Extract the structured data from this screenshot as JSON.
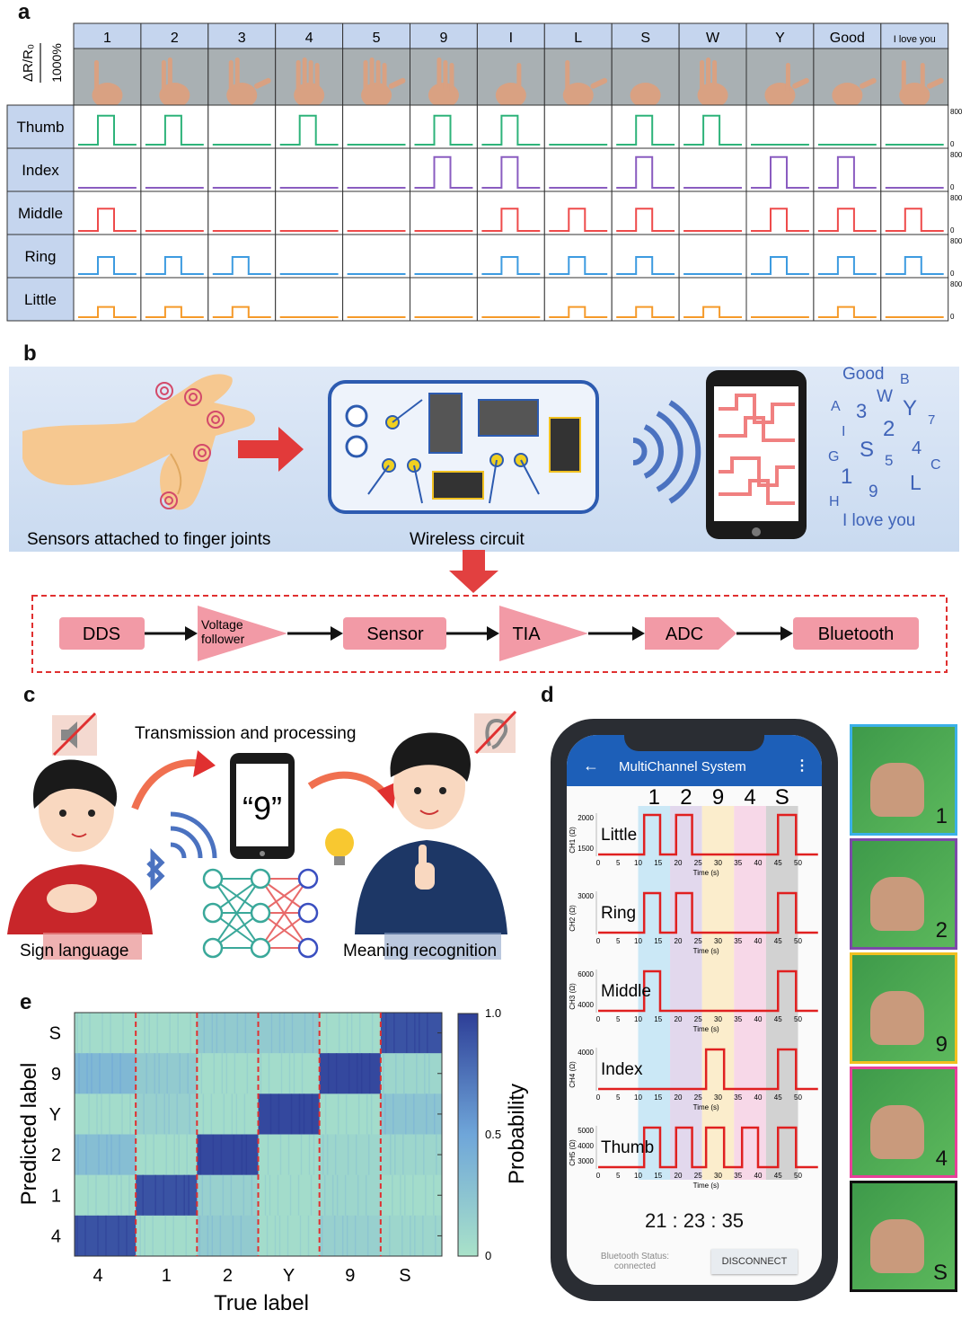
{
  "panel_labels": {
    "a": "a",
    "b": "b",
    "c": "c",
    "d": "d",
    "e": "e"
  },
  "panel_a": {
    "scale_label": "ΔR/R₀",
    "scale_value": "1000%",
    "axis_max": "800",
    "axis_min": "0",
    "gestures": [
      "1",
      "2",
      "3",
      "4",
      "5",
      "9",
      "I",
      "L",
      "S",
      "W",
      "Y",
      "Good",
      "I love you"
    ],
    "fingers": [
      {
        "name": "Thumb",
        "color": "#2eb37a",
        "level": 0.85,
        "bent": [
          1,
          1,
          0,
          1,
          0,
          1,
          1,
          0,
          1,
          1,
          0,
          0,
          0
        ]
      },
      {
        "name": "Index",
        "color": "#8a5cc0",
        "level": 0.9,
        "bent": [
          0,
          0,
          0,
          0,
          0,
          1,
          1,
          0,
          1,
          0,
          1,
          1,
          0
        ]
      },
      {
        "name": "Middle",
        "color": "#ee4b4b",
        "level": 0.65,
        "bent": [
          1,
          0,
          0,
          0,
          0,
          0,
          1,
          1,
          1,
          0,
          1,
          1,
          1
        ]
      },
      {
        "name": "Ring",
        "color": "#3d9be0",
        "level": 0.5,
        "bent": [
          1,
          1,
          1,
          0,
          0,
          0,
          1,
          1,
          1,
          0,
          1,
          1,
          1
        ]
      },
      {
        "name": "Little",
        "color": "#f59a2a",
        "level": 0.3,
        "bent": [
          1,
          1,
          1,
          0,
          0,
          0,
          0,
          1,
          1,
          1,
          0,
          1,
          0
        ]
      }
    ]
  },
  "panel_b": {
    "caption_sensors": "Sensors attached to finger joints",
    "caption_circuit": "Wireless circuit",
    "letters": [
      "Good",
      "B",
      "A",
      "3",
      "W",
      "Y",
      "7",
      "I",
      "2",
      "G",
      "S",
      "5",
      "4",
      "C",
      "1",
      "L",
      "9",
      "H",
      "I love you"
    ],
    "blocks": [
      "DDS",
      "Voltage follower",
      "Sensor",
      "TIA",
      "ADC",
      "Bluetooth"
    ],
    "block_color": "#f29aa6",
    "border_color": "#e03030"
  },
  "panel_c": {
    "title": "Transmission and processing",
    "phone_text": "“9”",
    "left_caption": "Sign language",
    "right_caption": "Meaning recognition"
  },
  "panel_d": {
    "app_title": "MultiChannel System",
    "gesture_labels": [
      "1",
      "2",
      "9",
      "4",
      "S"
    ],
    "band_colors": [
      "#bfe3f5",
      "#dccfea",
      "#fbeac0",
      "#f6cfe4",
      "#c8c8c8"
    ],
    "x_ticks": [
      "0",
      "5",
      "10",
      "15",
      "20",
      "25",
      "30",
      "35",
      "40",
      "45",
      "50"
    ],
    "x_label": "Time (s)",
    "channels": [
      {
        "name": "Little",
        "y_label": "CH1 (Ω)",
        "ticks": [
          "2000",
          "1500"
        ],
        "high": [
          1,
          1,
          0,
          0,
          1
        ]
      },
      {
        "name": "Ring",
        "y_label": "CH2 (Ω)",
        "ticks": [
          "3000"
        ],
        "high": [
          1,
          1,
          0,
          0,
          1
        ]
      },
      {
        "name": "Middle",
        "y_label": "CH3 (Ω)",
        "ticks": [
          "6000",
          "4000"
        ],
        "high": [
          1,
          0,
          0,
          0,
          1
        ]
      },
      {
        "name": "Index",
        "y_label": "CH4 (Ω)",
        "ticks": [
          "4000"
        ],
        "high": [
          0,
          0,
          1,
          0,
          1
        ]
      },
      {
        "name": "Thumb",
        "y_label": "CH5 (Ω)",
        "ticks": [
          "5000",
          "4000",
          "3000"
        ],
        "high": [
          1,
          1,
          1,
          1,
          1
        ]
      }
    ],
    "clock": "21 : 23 : 35",
    "bt_status_label": "Bluetooth Status:",
    "bt_status_value": "connected",
    "disconnect_label": "DISCONNECT",
    "photos": [
      {
        "label": "1",
        "border": "#3ab0e8"
      },
      {
        "label": "2",
        "border": "#7b4aa8"
      },
      {
        "label": "9",
        "border": "#f0c020"
      },
      {
        "label": "4",
        "border": "#e8409a"
      },
      {
        "label": "S",
        "border": "#111111"
      }
    ]
  },
  "chart_data": {
    "type": "heatmap",
    "xlabel": "True label",
    "ylabel": "Predicted label",
    "x_categories": [
      "4",
      "1",
      "2",
      "Y",
      "9",
      "S"
    ],
    "y_categories": [
      "S",
      "9",
      "Y",
      "2",
      "1",
      "4"
    ],
    "values": [
      [
        0.05,
        0.05,
        0.2,
        0.2,
        0.05,
        0.9
      ],
      [
        0.35,
        0.2,
        0.05,
        0.05,
        0.95,
        0.1
      ],
      [
        0.05,
        0.15,
        0.05,
        0.95,
        0.05,
        0.25
      ],
      [
        0.3,
        0.05,
        0.95,
        0.05,
        0.1,
        0.1
      ],
      [
        0.05,
        0.9,
        0.15,
        0.05,
        0.1,
        0.05
      ],
      [
        0.9,
        0.05,
        0.2,
        0.05,
        0.15,
        0.1
      ]
    ],
    "colorbar": {
      "label": "Probability",
      "ticks": [
        "1.0",
        "0.5",
        "0"
      ],
      "range": [
        0,
        1
      ],
      "colors": [
        "#a9e2c9",
        "#6fa6d9",
        "#2d3e97"
      ]
    },
    "separator_color": "#e03030"
  }
}
